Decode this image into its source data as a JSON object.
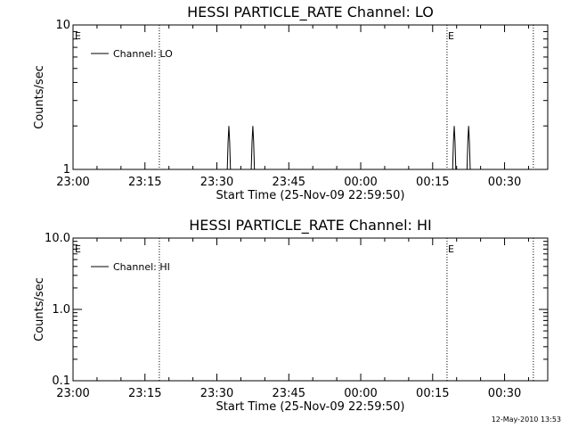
{
  "chart_data": [
    {
      "type": "line",
      "title": "HESSI PARTICLE_RATE Channel: LO",
      "xlabel": "Start Time (25-Nov-09 22:59:50)",
      "ylabel": "Counts/sec",
      "y_scale": "log",
      "ylim": [
        1,
        10
      ],
      "y_ticks": [
        {
          "value": 1,
          "label": "1"
        },
        {
          "value": 10,
          "label": "10"
        }
      ],
      "xlim": [
        "23:00",
        "00:39"
      ],
      "x_ticks": [
        "23:00",
        "23:15",
        "23:30",
        "23:45",
        "00:00",
        "00:15",
        "00:30"
      ],
      "legend": {
        "position": "top-left"
      },
      "series": [
        {
          "name": "Channel: LO",
          "x": [
            "23:32:10",
            "23:32:20",
            "23:32:30",
            "23:32:40",
            "23:32:50",
            "23:37:10",
            "23:37:20",
            "23:37:30",
            "23:37:40",
            "23:37:50",
            "00:19:10",
            "00:19:20",
            "00:19:30",
            "00:19:40",
            "00:19:50",
            "00:22:10",
            "00:22:20",
            "00:22:30",
            "00:22:40",
            "00:22:50"
          ],
          "y": [
            1,
            1.55,
            2,
            1.55,
            1,
            1,
            1.55,
            2,
            1.55,
            1,
            1,
            1.55,
            2,
            1.55,
            1,
            1,
            1.55,
            2,
            1.55,
            1
          ]
        }
      ],
      "markers": [
        {
          "time": "23:18",
          "label": ""
        },
        {
          "time": "00:18",
          "label": "E"
        },
        {
          "time": "00:36",
          "label": ""
        }
      ],
      "start_flag": "E"
    },
    {
      "type": "line",
      "title": "HESSI PARTICLE_RATE Channel: HI",
      "xlabel": "Start Time (25-Nov-09 22:59:50)",
      "ylabel": "Counts/sec",
      "y_scale": "log",
      "ylim": [
        0.1,
        10
      ],
      "y_ticks": [
        {
          "value": 0.1,
          "label": "0.1"
        },
        {
          "value": 1,
          "label": "1.0"
        },
        {
          "value": 10,
          "label": "10.0"
        }
      ],
      "xlim": [
        "23:00",
        "00:39"
      ],
      "x_ticks": [
        "23:00",
        "23:15",
        "23:30",
        "23:45",
        "00:00",
        "00:15",
        "00:30"
      ],
      "legend": {
        "position": "top-left"
      },
      "series": [
        {
          "name": "Channel: HI",
          "x": [],
          "y": []
        }
      ],
      "markers": [
        {
          "time": "23:18",
          "label": ""
        },
        {
          "time": "00:18",
          "label": "E"
        },
        {
          "time": "00:36",
          "label": ""
        }
      ],
      "start_flag": "E"
    }
  ],
  "footer": "12-May-2010 13:53"
}
